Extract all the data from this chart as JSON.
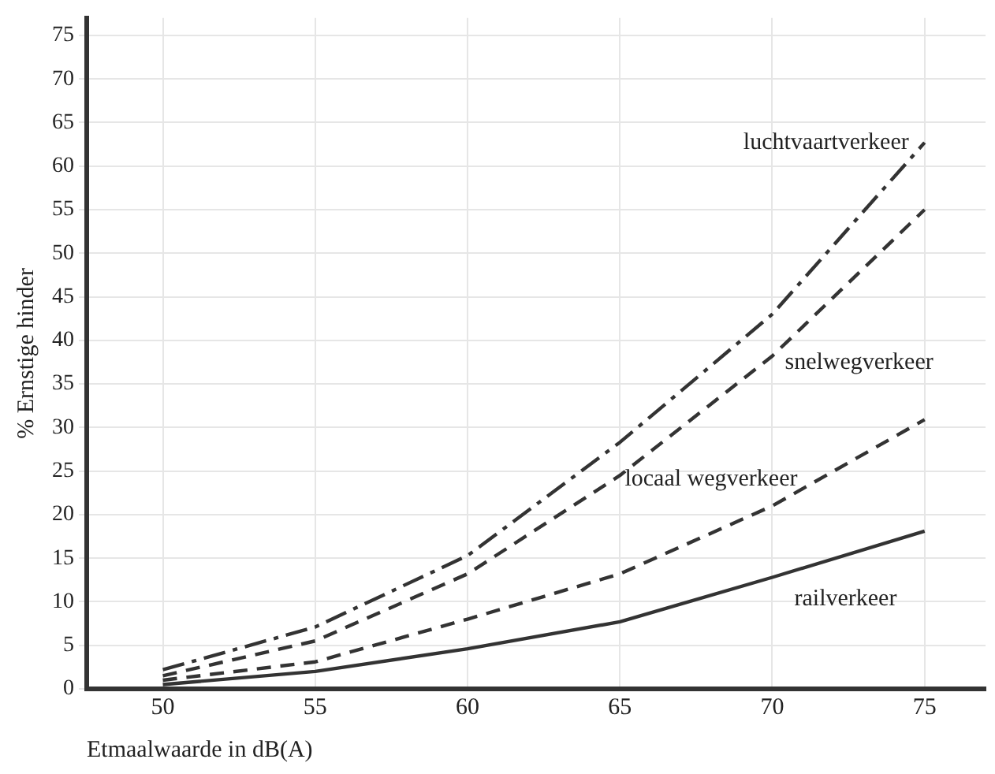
{
  "chart_data": {
    "type": "line",
    "xlabel": "Etmaalwaarde in dB(A)",
    "ylabel": "% Ernstige hinder",
    "x": [
      50,
      55,
      60,
      65,
      70,
      75
    ],
    "series": [
      {
        "name": "luchtvaartverkeer",
        "color": "#333333",
        "line_style": "dashdot",
        "values": [
          2.2,
          7.1,
          15.3,
          28.3,
          43,
          62.7
        ]
      },
      {
        "name": "snelwegverkeer",
        "color": "#333333",
        "line_style": "dashed",
        "values": [
          1.5,
          5.5,
          13.2,
          24.5,
          38.2,
          55
        ]
      },
      {
        "name": "locaal wegverkeer",
        "color": "#333333",
        "line_style": "dashed",
        "values": [
          1,
          3.1,
          8,
          13.2,
          21,
          30.9
        ]
      },
      {
        "name": "railverkeer",
        "color": "#333333",
        "line_style": "solid",
        "values": [
          0.5,
          2,
          4.6,
          7.7,
          12.8,
          18.1
        ]
      }
    ],
    "xlim": [
      47.5,
      77
    ],
    "ylim": [
      0,
      77
    ],
    "xticks": [
      50,
      55,
      60,
      65,
      70,
      75
    ],
    "yticks": [
      0,
      5,
      10,
      15,
      20,
      25,
      30,
      35,
      40,
      45,
      50,
      55,
      60,
      65,
      70,
      75
    ],
    "grid": true,
    "legend": false,
    "marker": "none"
  }
}
